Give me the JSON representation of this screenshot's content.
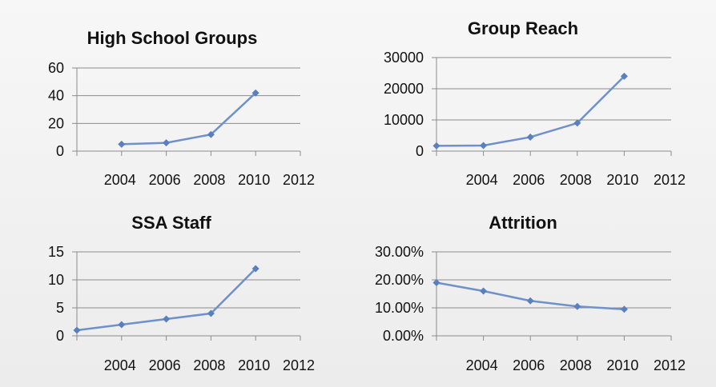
{
  "chart_data": [
    {
      "type": "line",
      "title": "High School Groups",
      "categories": [
        "2004",
        "2006",
        "2008",
        "2010",
        "2012"
      ],
      "x": [
        2005,
        2007,
        2009,
        2011
      ],
      "values": [
        5,
        6,
        12,
        42
      ],
      "ylim": [
        0,
        60
      ],
      "yticks": [
        "0",
        "20",
        "40",
        "60"
      ],
      "ytick_values": [
        0,
        20,
        40,
        60
      ],
      "grid": true,
      "color": "#6f90c8"
    },
    {
      "type": "line",
      "title": "Group Reach",
      "categories": [
        "2004",
        "2006",
        "2008",
        "2010",
        "2012"
      ],
      "x": [
        2003,
        2005,
        2007,
        2009,
        2011
      ],
      "values": [
        1700,
        1800,
        4500,
        9000,
        24000
      ],
      "ylim": [
        0,
        30000
      ],
      "yticks": [
        "0",
        "10000",
        "20000",
        "30000"
      ],
      "ytick_values": [
        0,
        10000,
        20000,
        30000
      ],
      "grid": true,
      "color": "#6f90c8"
    },
    {
      "type": "line",
      "title": "SSA Staff",
      "categories": [
        "2004",
        "2006",
        "2008",
        "2010",
        "2012"
      ],
      "x": [
        2003,
        2005,
        2007,
        2009,
        2011
      ],
      "values": [
        1,
        2,
        3,
        4,
        12
      ],
      "ylim": [
        0,
        15
      ],
      "yticks": [
        "0",
        "5",
        "10",
        "15"
      ],
      "ytick_values": [
        0,
        5,
        10,
        15
      ],
      "grid": true,
      "color": "#6f90c8"
    },
    {
      "type": "line",
      "title": "Attrition",
      "categories": [
        "2004",
        "2006",
        "2008",
        "2010",
        "2012"
      ],
      "x": [
        2003,
        2005,
        2007,
        2009,
        2011
      ],
      "values": [
        0.19,
        0.16,
        0.125,
        0.105,
        0.095
      ],
      "ylim": [
        0,
        0.3
      ],
      "yticks": [
        "0.00%",
        "10.00%",
        "20.00%",
        "30.00%"
      ],
      "ytick_values": [
        0,
        0.1,
        0.2,
        0.3
      ],
      "grid": true,
      "color": "#6f90c8"
    }
  ]
}
